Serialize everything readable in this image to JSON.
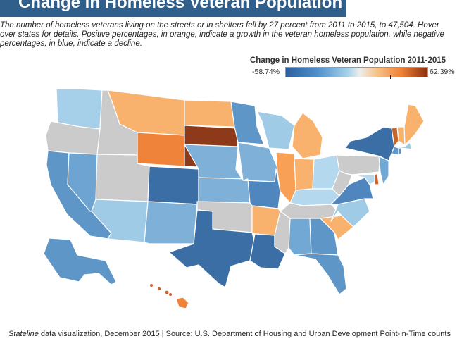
{
  "title": "Change in Homeless Veteran Population",
  "intro": "The number of homeless veterans living on the streets or in shelters fell by 27 percent from 2011 to 2015, to 47,504. Hover over states for details. Positive percentages, in orange, indicate a growth in the veteran homeless population, while negative percentages, in blue, indicate a decline.",
  "legend": {
    "title": "Change in Homeless Veteran Population 2011-2015",
    "min": "-58.74%",
    "max": "62.39%"
  },
  "colors": {
    "dark_blue": "#3b6ea5",
    "med_blue": "#5d96c7",
    "blue": "#72a8d4",
    "light_blue": "#9fcbe6",
    "pale_blue": "#b4d8ee",
    "gray": "#cbcbcb",
    "light_orange": "#f8b26d",
    "orange": "#f0833a",
    "red_orange": "#d2612a",
    "dark_red": "#8e3a1a"
  },
  "states": [
    {
      "id": "WA",
      "fill": "#a6d0ea"
    },
    {
      "id": "OR",
      "fill": "#cbcbcb"
    },
    {
      "id": "CA",
      "fill": "#5d96c7"
    },
    {
      "id": "NV",
      "fill": "#6ea4d1"
    },
    {
      "id": "ID",
      "fill": "#cbcbcb"
    },
    {
      "id": "MT",
      "fill": "#f8b26d"
    },
    {
      "id": "WY",
      "fill": "#f0833a"
    },
    {
      "id": "UT",
      "fill": "#cbcbcb"
    },
    {
      "id": "AZ",
      "fill": "#9fcbe6"
    },
    {
      "id": "CO",
      "fill": "#3b6ea5"
    },
    {
      "id": "NM",
      "fill": "#7fb1d8"
    },
    {
      "id": "ND",
      "fill": "#f8b26d"
    },
    {
      "id": "SD",
      "fill": "#8e3a1a"
    },
    {
      "id": "NE",
      "fill": "#7fb1d8"
    },
    {
      "id": "KS",
      "fill": "#7fb1d8"
    },
    {
      "id": "OK",
      "fill": "#cbcbcb"
    },
    {
      "id": "TX",
      "fill": "#3b6ea5"
    },
    {
      "id": "MN",
      "fill": "#5d96c7"
    },
    {
      "id": "IA",
      "fill": "#7fb1d8"
    },
    {
      "id": "MO",
      "fill": "#4e86bd"
    },
    {
      "id": "AR",
      "fill": "#f8b26d"
    },
    {
      "id": "LA",
      "fill": "#3b6ea5"
    },
    {
      "id": "WI",
      "fill": "#9fcbe6"
    },
    {
      "id": "IL",
      "fill": "#f8a055"
    },
    {
      "id": "MI",
      "fill": "#f8b26d"
    },
    {
      "id": "IN",
      "fill": "#f8b26d"
    },
    {
      "id": "OH",
      "fill": "#b4d8ee"
    },
    {
      "id": "KY",
      "fill": "#b4d8ee"
    },
    {
      "id": "TN",
      "fill": "#cbcbcb"
    },
    {
      "id": "MS",
      "fill": "#cbcbcb"
    },
    {
      "id": "AL",
      "fill": "#72a8d4"
    },
    {
      "id": "GA",
      "fill": "#5d96c7"
    },
    {
      "id": "FL",
      "fill": "#5d96c7"
    },
    {
      "id": "SC",
      "fill": "#f8b26d"
    },
    {
      "id": "NC",
      "fill": "#9fcbe6"
    },
    {
      "id": "VA",
      "fill": "#4e86bd"
    },
    {
      "id": "WV",
      "fill": "#cbcbcb"
    },
    {
      "id": "PA",
      "fill": "#cbcbcb"
    },
    {
      "id": "NY",
      "fill": "#3b6ea5"
    },
    {
      "id": "NJ",
      "fill": "#72a8d4"
    },
    {
      "id": "DE",
      "fill": "#d2612a"
    },
    {
      "id": "MD",
      "fill": "#b4d8ee"
    },
    {
      "id": "VT",
      "fill": "#c4652a"
    },
    {
      "id": "NH",
      "fill": "#f8b26d"
    },
    {
      "id": "ME",
      "fill": "#f8b26d"
    },
    {
      "id": "MA",
      "fill": "#9fcbe6"
    },
    {
      "id": "CT",
      "fill": "#5d96c7"
    },
    {
      "id": "RI",
      "fill": "#5d96c7"
    },
    {
      "id": "AK",
      "fill": "#5d96c7"
    },
    {
      "id": "HI",
      "fill": "#f0833a"
    }
  ],
  "footer": {
    "brand": "Stateline",
    "text": " data visualization, December 2015 | Source: U.S. Department of Housing and Urban Development Point-in-Time counts"
  }
}
